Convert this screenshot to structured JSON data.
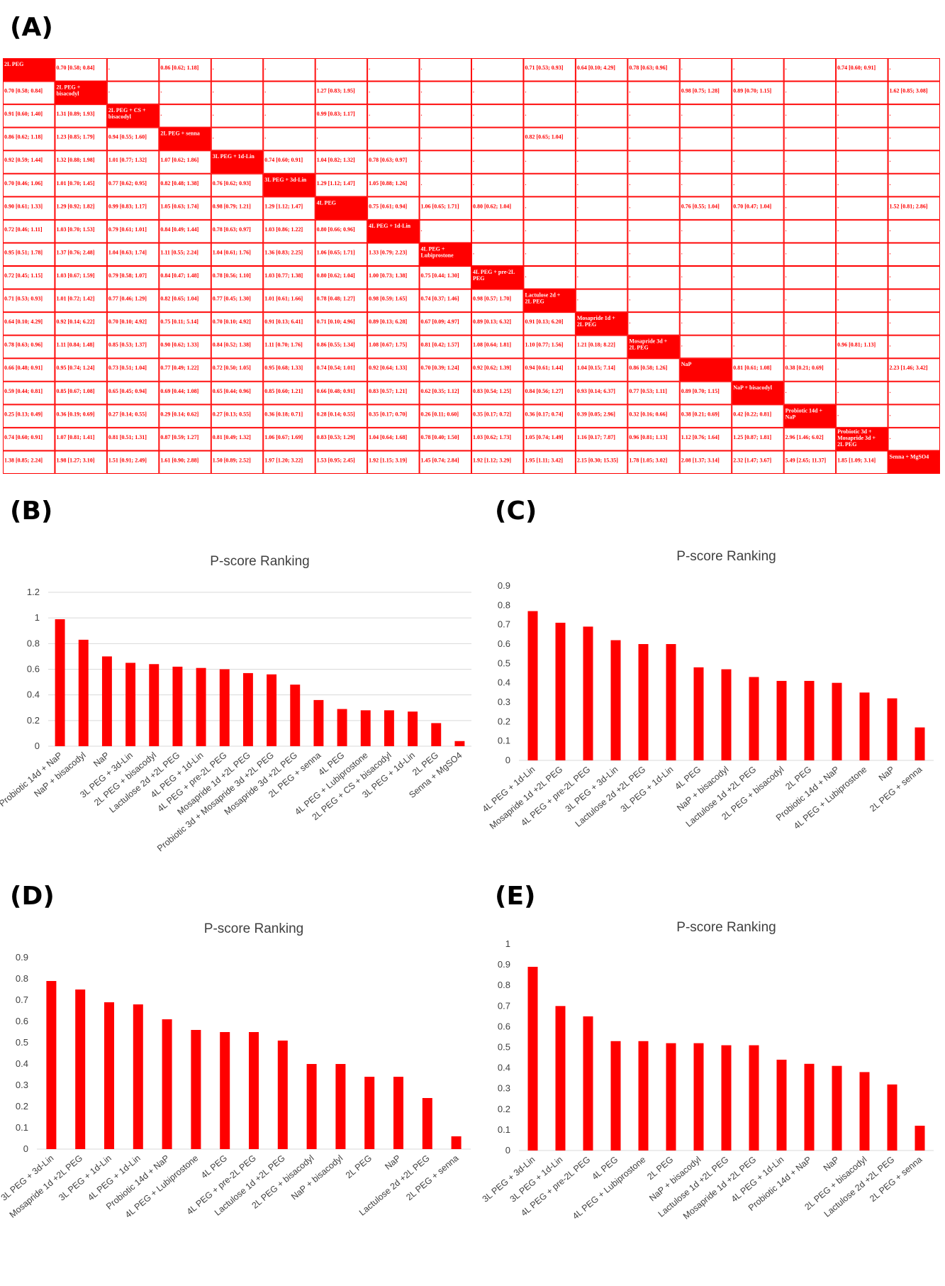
{
  "panels": {
    "a": "(A)",
    "b": "(B)",
    "c": "(C)",
    "d": "(D)",
    "e": "(E)"
  },
  "colors": {
    "accent": "#ff0000",
    "grid": "#d9d9d9",
    "text": "#404040"
  },
  "league_table": {
    "treatments": [
      "2L PEG",
      "2L PEG + bisacodyl",
      "2L PEG + CS + bisacodyl",
      "2L PEG + senna",
      "3L PEG + 1d-Lin",
      "3L PEG + 3d-Lin",
      "4L PEG",
      "4L PEG + 1d-Lin",
      "4L PEG + Lubiprostone",
      "4L PEG + pre-2L PEG",
      "Lactulose 2d + 2L PEG",
      "Mosapride 1d + 2L PEG",
      "Mosapride 3d + 2L PEG",
      "NaP",
      "NaP + bisacodyl",
      "Probiotic 14d + NaP",
      "Probiotic 3d + Mosapride 3d + 2L PEG",
      "Senna + MgSO4"
    ],
    "rows": [
      [
        "2L PEG",
        "0.70 [0.58; 0.84]",
        ".",
        "0.86 [0.62; 1.18]",
        ".",
        ".",
        ".",
        ".",
        ".",
        ".",
        "0.71 [0.53; 0.93]",
        "0.64 [0.10; 4.29]",
        "0.78 [0.63; 0.96]",
        ".",
        ".",
        ".",
        "0.74 [0.60; 0.91]",
        "."
      ],
      [
        "0.70 [0.58; 0.84]",
        "2L PEG + bisacodyl",
        ".",
        ".",
        ".",
        ".",
        "1.27 [0.83; 1.95]",
        ".",
        ".",
        ".",
        ".",
        ".",
        ".",
        "0.98 [0.75; 1.28]",
        "0.89 [0.70; 1.15]",
        ".",
        ".",
        "1.62 [0.85; 3.08]"
      ],
      [
        "0.91 [0.60; 1.40]",
        "1.31 [0.89; 1.93]",
        "2L PEG + CS + bisacodyl",
        ".",
        ".",
        ".",
        "0.99 [0.83; 1.17]",
        ".",
        ".",
        ".",
        ".",
        ".",
        ".",
        ".",
        ".",
        ".",
        ".",
        "."
      ],
      [
        "0.86 [0.62; 1.18]",
        "1.23 [0.85; 1.79]",
        "0.94 [0.55; 1.60]",
        "2L PEG + senna",
        ".",
        ".",
        ".",
        ".",
        ".",
        ".",
        "0.82 [0.65; 1.04]",
        ".",
        ".",
        ".",
        ".",
        ".",
        ".",
        "."
      ],
      [
        "0.92 [0.59; 1.44]",
        "1.32 [0.88; 1.98]",
        "1.01 [0.77; 1.32]",
        "1.07 [0.62; 1.86]",
        "3L PEG + 1d-Lin",
        "0.74 [0.60; 0.91]",
        "1.04 [0.82; 1.32]",
        "0.78 [0.63; 0.97]",
        ".",
        ".",
        ".",
        ".",
        ".",
        ".",
        ".",
        ".",
        ".",
        "."
      ],
      [
        "0.70 [0.46; 1.06]",
        "1.01 [0.70; 1.45]",
        "0.77 [0.62; 0.95]",
        "0.82 [0.48; 1.38]",
        "0.76 [0.62; 0.93]",
        "3L PEG + 3d-Lin",
        "1.29 [1.12; 1.47]",
        "1.05 [0.88; 1.26]",
        ".",
        ".",
        ".",
        ".",
        ".",
        ".",
        ".",
        ".",
        ".",
        "."
      ],
      [
        "0.90 [0.61; 1.33]",
        "1.29 [0.92; 1.82]",
        "0.99 [0.83; 1.17]",
        "1.05 [0.63; 1.74]",
        "0.98 [0.79; 1.21]",
        "1.29 [1.12; 1.47]",
        "4L PEG",
        "0.75 [0.61; 0.94]",
        "1.06 [0.65; 1.71]",
        "0.80 [0.62; 1.04]",
        ".",
        ".",
        ".",
        "0.76 [0.55; 1.04]",
        "0.70 [0.47; 1.04]",
        ".",
        ".",
        "1.52 [0.81; 2.86]"
      ],
      [
        "0.72 [0.46; 1.11]",
        "1.03 [0.70; 1.53]",
        "0.79 [0.61; 1.01]",
        "0.84 [0.49; 1.44]",
        "0.78 [0.63; 0.97]",
        "1.03 [0.86; 1.22]",
        "0.80 [0.66; 0.96]",
        "4L PEG + 1d-Lin",
        ".",
        ".",
        ".",
        ".",
        ".",
        ".",
        ".",
        ".",
        ".",
        "."
      ],
      [
        "0.95 [0.51; 1.78]",
        "1.37 [0.76; 2.48]",
        "1.04 [0.63; 1.74]",
        "1.11 [0.55; 2.24]",
        "1.04 [0.61; 1.76]",
        "1.36 [0.83; 2.25]",
        "1.06 [0.65; 1.71]",
        "1.33 [0.79; 2.23]",
        "4L PEG + Lubiprostone",
        ".",
        ".",
        ".",
        ".",
        ".",
        ".",
        ".",
        ".",
        "."
      ],
      [
        "0.72 [0.45; 1.15]",
        "1.03 [0.67; 1.59]",
        "0.79 [0.58; 1.07]",
        "0.84 [0.47; 1.48]",
        "0.78 [0.56; 1.10]",
        "1.03 [0.77; 1.38]",
        "0.80 [0.62; 1.04]",
        "1.00 [0.73; 1.38]",
        "0.75 [0.44; 1.30]",
        "4L PEG + pre-2L PEG",
        ".",
        ".",
        ".",
        ".",
        ".",
        ".",
        ".",
        "."
      ],
      [
        "0.71 [0.53; 0.93]",
        "1.01 [0.72; 1.42]",
        "0.77 [0.46; 1.29]",
        "0.82 [0.65; 1.04]",
        "0.77 [0.45; 1.30]",
        "1.01 [0.61; 1.66]",
        "0.78 [0.48; 1.27]",
        "0.98 [0.59; 1.65]",
        "0.74 [0.37; 1.46]",
        "0.98 [0.57; 1.70]",
        "Lactulose 2d + 2L PEG",
        ".",
        ".",
        ".",
        ".",
        ".",
        ".",
        "."
      ],
      [
        "0.64 [0.10; 4.29]",
        "0.92 [0.14; 6.22]",
        "0.70 [0.10; 4.92]",
        "0.75 [0.11; 5.14]",
        "0.70 [0.10; 4.92]",
        "0.91 [0.13; 6.41]",
        "0.71 [0.10; 4.96]",
        "0.89 [0.13; 6.28]",
        "0.67 [0.09; 4.97]",
        "0.89 [0.13; 6.32]",
        "0.91 [0.13; 6.20]",
        "Mosapride 1d + 2L PEG",
        ".",
        ".",
        ".",
        ".",
        ".",
        "."
      ],
      [
        "0.78 [0.63; 0.96]",
        "1.11 [0.84; 1.48]",
        "0.85 [0.53; 1.37]",
        "0.90 [0.62; 1.33]",
        "0.84 [0.52; 1.38]",
        "1.11 [0.70; 1.76]",
        "0.86 [0.55; 1.34]",
        "1.08 [0.67; 1.75]",
        "0.81 [0.42; 1.57]",
        "1.08 [0.64; 1.81]",
        "1.10 [0.77; 1.56]",
        "1.21 [0.18; 8.22]",
        "Mosapride 3d + 2L PEG",
        ".",
        ".",
        ".",
        "0.96 [0.81; 1.13]",
        "."
      ],
      [
        "0.66 [0.48; 0.91]",
        "0.95 [0.74; 1.24]",
        "0.73 [0.51; 1.04]",
        "0.77 [0.49; 1.22]",
        "0.72 [0.50; 1.05]",
        "0.95 [0.68; 1.33]",
        "0.74 [0.54; 1.01]",
        "0.92 [0.64; 1.33]",
        "0.70 [0.39; 1.24]",
        "0.92 [0.62; 1.39]",
        "0.94 [0.61; 1.44]",
        "1.04 [0.15; 7.14]",
        "0.86 [0.58; 1.26]",
        "NaP",
        "0.81 [0.61; 1.08]",
        "0.38 [0.21; 0.69]",
        ".",
        "2.23 [1.46; 3.42]"
      ],
      [
        "0.59 [0.44; 0.81]",
        "0.85 [0.67; 1.08]",
        "0.65 [0.45; 0.94]",
        "0.69 [0.44; 1.08]",
        "0.65 [0.44; 0.96]",
        "0.85 [0.60; 1.21]",
        "0.66 [0.48; 0.91]",
        "0.83 [0.57; 1.21]",
        "0.62 [0.35; 1.12]",
        "0.83 [0.54; 1.25]",
        "0.84 [0.56; 1.27]",
        "0.93 [0.14; 6.37]",
        "0.77 [0.53; 1.11]",
        "0.89 [0.70; 1.15]",
        "NaP + bisacodyl",
        ".",
        ".",
        "."
      ],
      [
        "0.25 [0.13; 0.49]",
        "0.36 [0.19; 0.69]",
        "0.27 [0.14; 0.55]",
        "0.29 [0.14; 0.62]",
        "0.27 [0.13; 0.55]",
        "0.36 [0.18; 0.71]",
        "0.28 [0.14; 0.55]",
        "0.35 [0.17; 0.70]",
        "0.26 [0.11; 0.60]",
        "0.35 [0.17; 0.72]",
        "0.36 [0.17; 0.74]",
        "0.39 [0.05; 2.96]",
        "0.32 [0.16; 0.66]",
        "0.38 [0.21; 0.69]",
        "0.42 [0.22; 0.81]",
        "Probiotic 14d + NaP",
        ".",
        "."
      ],
      [
        "0.74 [0.60; 0.91]",
        "1.07 [0.81; 1.41]",
        "0.81 [0.51; 1.31]",
        "0.87 [0.59; 1.27]",
        "0.81 [0.49; 1.32]",
        "1.06 [0.67; 1.69]",
        "0.83 [0.53; 1.29]",
        "1.04 [0.64; 1.68]",
        "0.78 [0.40; 1.50]",
        "1.03 [0.62; 1.73]",
        "1.05 [0.74; 1.49]",
        "1.16 [0.17; 7.87]",
        "0.96 [0.81; 1.13]",
        "1.12 [0.76; 1.64]",
        "1.25 [0.87; 1.81]",
        "2.96 [1.46; 6.02]",
        "Probiotic 3d + Mosapride 3d + 2L PEG",
        "."
      ],
      [
        "1.38 [0.85; 2.24]",
        "1.98 [1.27; 3.10]",
        "1.51 [0.91; 2.49]",
        "1.61 [0.90; 2.88]",
        "1.50 [0.89; 2.52]",
        "1.97 [1.20; 3.22]",
        "1.53 [0.95; 2.45]",
        "1.92 [1.15; 3.19]",
        "1.45 [0.74; 2.84]",
        "1.92 [1.12; 3.29]",
        "1.95 [1.11; 3.42]",
        "2.15 [0.30; 15.35]",
        "1.78 [1.05; 3.02]",
        "2.08 [1.37; 3.14]",
        "2.32 [1.47; 3.67]",
        "5.49 [2.65; 11.37]",
        "1.85 [1.09; 3.14]",
        "Senna + MgSO4"
      ]
    ]
  },
  "chart_data": [
    {
      "panel": "B",
      "type": "bar",
      "title": "P-score Ranking",
      "categories": [
        "Probiotic 14d + NaP",
        "NaP + bisacodyl",
        "NaP",
        "3L PEG + 3d-Lin",
        "2L PEG + bisacodyl",
        "Lactulose 2d +2L PEG",
        "4L PEG + 1d-Lin",
        "4L PEG + pre-2L PEG",
        "Mosapride 1d +2L PEG",
        "Probiotic 3d + Mosapride 3d +2L PEG",
        "Mosapride 3d +2L PEG",
        "2L PEG + senna",
        "4L PEG",
        "4L PEG + Lubiprostone",
        "2L PEG + CS + bisacodyl",
        "3L PEG + 1d-Lin",
        "2L PEG",
        "Senna + MgSO4"
      ],
      "values": [
        0.99,
        0.83,
        0.7,
        0.65,
        0.64,
        0.62,
        0.61,
        0.6,
        0.57,
        0.56,
        0.48,
        0.36,
        0.29,
        0.28,
        0.28,
        0.27,
        0.18,
        0.04
      ],
      "yticks": [
        "0",
        "0.2",
        "0.4",
        "0.6",
        "0.8",
        "1",
        "1.2"
      ],
      "ylim": [
        0,
        1.2
      ],
      "grid": true
    },
    {
      "panel": "C",
      "type": "bar",
      "title": "P-score Ranking",
      "categories": [
        "4L PEG + 1d-Lin",
        "Mosapride 1d +2L PEG",
        "4L PEG + pre-2L PEG",
        "3L PEG + 3d-Lin",
        "Lactulose 2d +2L PEG",
        "3L PEG + 1d-Lin",
        "4L PEG",
        "NaP + bisacodyl",
        "Lactulose 1d +2L PEG",
        "2L PEG + bisacodyl",
        "2L PEG",
        "Probiotic 14d + NaP",
        "4L PEG + Lubiprostone",
        "NaP",
        "2L PEG + senna"
      ],
      "values": [
        0.77,
        0.71,
        0.69,
        0.62,
        0.6,
        0.6,
        0.48,
        0.47,
        0.43,
        0.41,
        0.41,
        0.4,
        0.35,
        0.32,
        0.17
      ],
      "yticks": [
        "0",
        "0.1",
        "0.2",
        "0.3",
        "0.4",
        "0.5",
        "0.6",
        "0.7",
        "0.8",
        "0.9"
      ],
      "ylim": [
        0,
        0.9
      ],
      "grid": false
    },
    {
      "panel": "D",
      "type": "bar",
      "title": "P-score Ranking",
      "categories": [
        "3L PEG + 3d-Lin",
        "Mosapride 1d +2L PEG",
        "3L PEG + 1d-Lin",
        "4L PEG + 1d-Lin",
        "Probiotic 14d + NaP",
        "4L PEG + Lubiprostone",
        "4L PEG",
        "4L PEG + pre-2L PEG",
        "Lactulose 1d +2L PEG",
        "2L PEG + bisacodyl",
        "NaP + bisacodyl",
        "2L PEG",
        "NaP",
        "Lactulose 2d +2L PEG",
        "2L PEG + senna"
      ],
      "values": [
        0.79,
        0.75,
        0.69,
        0.68,
        0.61,
        0.56,
        0.55,
        0.55,
        0.51,
        0.4,
        0.4,
        0.34,
        0.34,
        0.24,
        0.06
      ],
      "yticks": [
        "0",
        "0.1",
        "0.2",
        "0.3",
        "0.4",
        "0.5",
        "0.6",
        "0.7",
        "0.8",
        "0.9"
      ],
      "ylim": [
        0,
        0.9
      ],
      "grid": false
    },
    {
      "panel": "E",
      "type": "bar",
      "title": "P-score Ranking",
      "categories": [
        "3L PEG + 3d-Lin",
        "3L PEG + 1d-Lin",
        "4L PEG + pre-2L PEG",
        "4L PEG",
        "4L PEG + Lubiprostone",
        "2L PEG",
        "NaP + bisacodyl",
        "Lactulose 1d +2L PEG",
        "Mosapride 1d +2L PEG",
        "4L PEG + 1d-Lin",
        "Probiotic 14d + NaP",
        "NaP",
        "2L PEG + bisacodyl",
        "Lactulose 2d +2L PEG",
        "2L PEG + senna"
      ],
      "values": [
        0.89,
        0.7,
        0.65,
        0.53,
        0.53,
        0.52,
        0.52,
        0.51,
        0.51,
        0.44,
        0.42,
        0.41,
        0.38,
        0.32,
        0.12
      ],
      "yticks": [
        "0",
        "0.1",
        "0.2",
        "0.3",
        "0.4",
        "0.5",
        "0.6",
        "0.7",
        "0.8",
        "0.9",
        "1"
      ],
      "ylim": [
        0,
        1.0
      ],
      "grid": false
    }
  ]
}
